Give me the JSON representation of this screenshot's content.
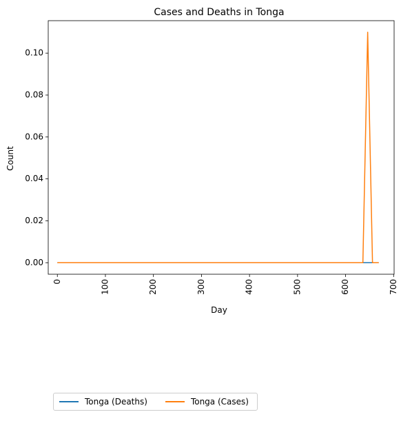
{
  "chart_data": {
    "type": "line",
    "title": "Cases and Deaths in Tonga",
    "xlabel": "Day",
    "ylabel": "Count",
    "xlim": [
      -19,
      701
    ],
    "ylim": [
      -0.0055,
      0.1155
    ],
    "x_ticks": [
      0,
      100,
      200,
      300,
      400,
      500,
      600,
      700
    ],
    "y_ticks": [
      0.0,
      0.02,
      0.04,
      0.06,
      0.08,
      0.1
    ],
    "y_tick_labels": [
      "0.00",
      "0.02",
      "0.04",
      "0.06",
      "0.08",
      "0.10"
    ],
    "x_tick_rotation": 90,
    "grid": false,
    "legend_position": "bottom-left below axes",
    "series": [
      {
        "name": "Tonga (Deaths)",
        "color": "#1f77b4",
        "x": [
          0,
          669
        ],
        "y": [
          0,
          0
        ]
      },
      {
        "name": "Tonga (Cases)",
        "color": "#ff7f0e",
        "x": [
          0,
          636,
          646,
          656,
          669
        ],
        "y": [
          0,
          0,
          0.11,
          0,
          0
        ]
      }
    ]
  }
}
